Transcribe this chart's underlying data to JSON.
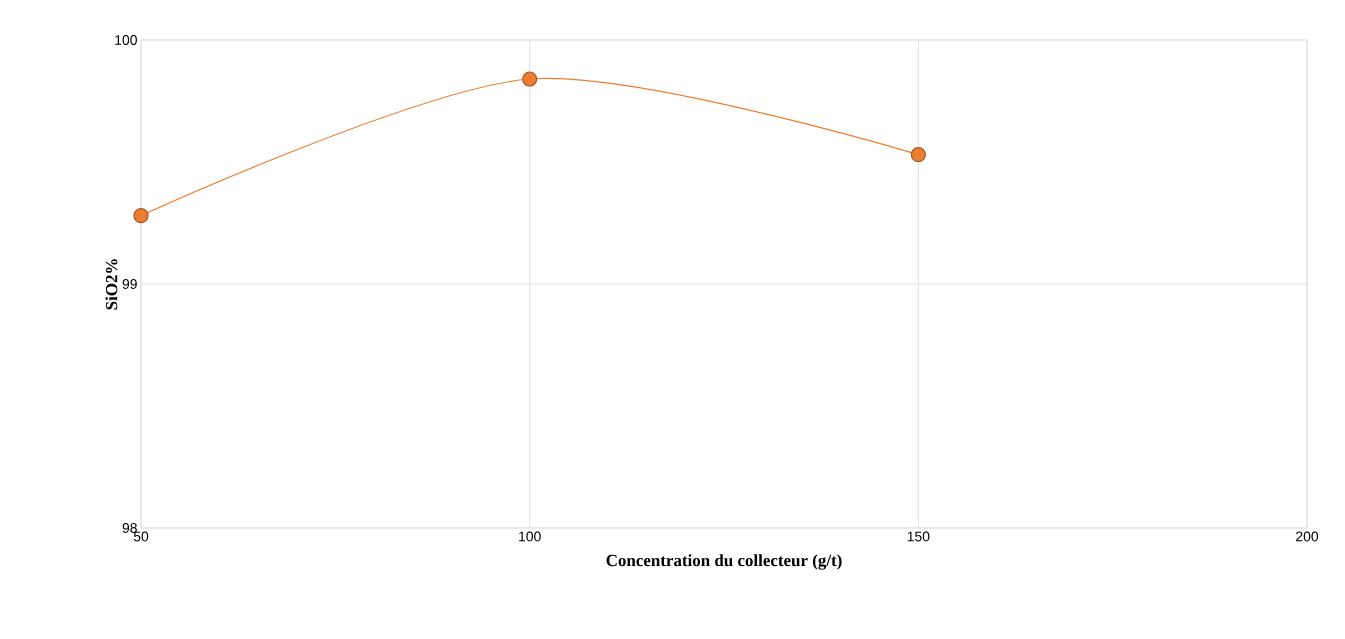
{
  "chart_data": {
    "type": "line",
    "xlabel": "Concentration du collecteur (g/t)",
    "ylabel": "SiO2%",
    "x": [
      50,
      100,
      150
    ],
    "series": [
      {
        "color": "#ed7d31",
        "values": [
          99.28,
          99.84,
          99.53
        ]
      }
    ],
    "xlim": [
      50,
      200
    ],
    "xticks": [
      50,
      100,
      150,
      200
    ],
    "ylim": [
      98,
      100
    ],
    "yticks": [
      98,
      99,
      100
    ],
    "grid": true,
    "marker": "circle"
  }
}
